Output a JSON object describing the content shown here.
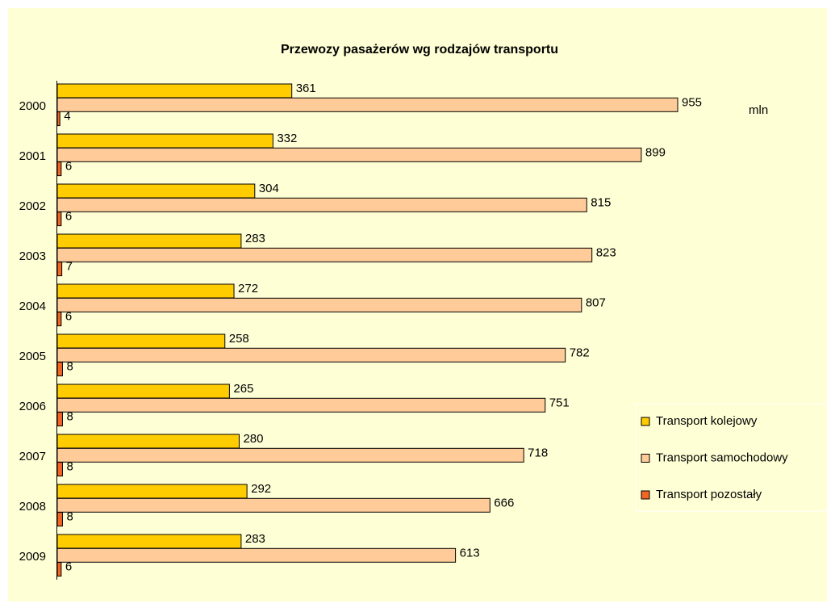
{
  "chart_data": {
    "type": "hbar",
    "title": "Przewozy pasażerów wg rodzajów transportu",
    "unit_label": "mln",
    "categories": [
      "2000",
      "2001",
      "2002",
      "2003",
      "2004",
      "2005",
      "2006",
      "2007",
      "2008",
      "2009"
    ],
    "series": [
      {
        "name": "Transport kolejowy",
        "color": "#ffcc00",
        "values": [
          361,
          332,
          304,
          283,
          272,
          258,
          265,
          280,
          292,
          283
        ]
      },
      {
        "name": "Transport samochodowy",
        "color": "#ffcc99",
        "values": [
          955,
          899,
          815,
          823,
          807,
          782,
          751,
          718,
          666,
          613
        ]
      },
      {
        "name": "Transport pozostały",
        "color": "#f26522",
        "values": [
          4,
          6,
          6,
          7,
          6,
          8,
          8,
          8,
          8,
          6
        ]
      }
    ],
    "legend": "right"
  }
}
